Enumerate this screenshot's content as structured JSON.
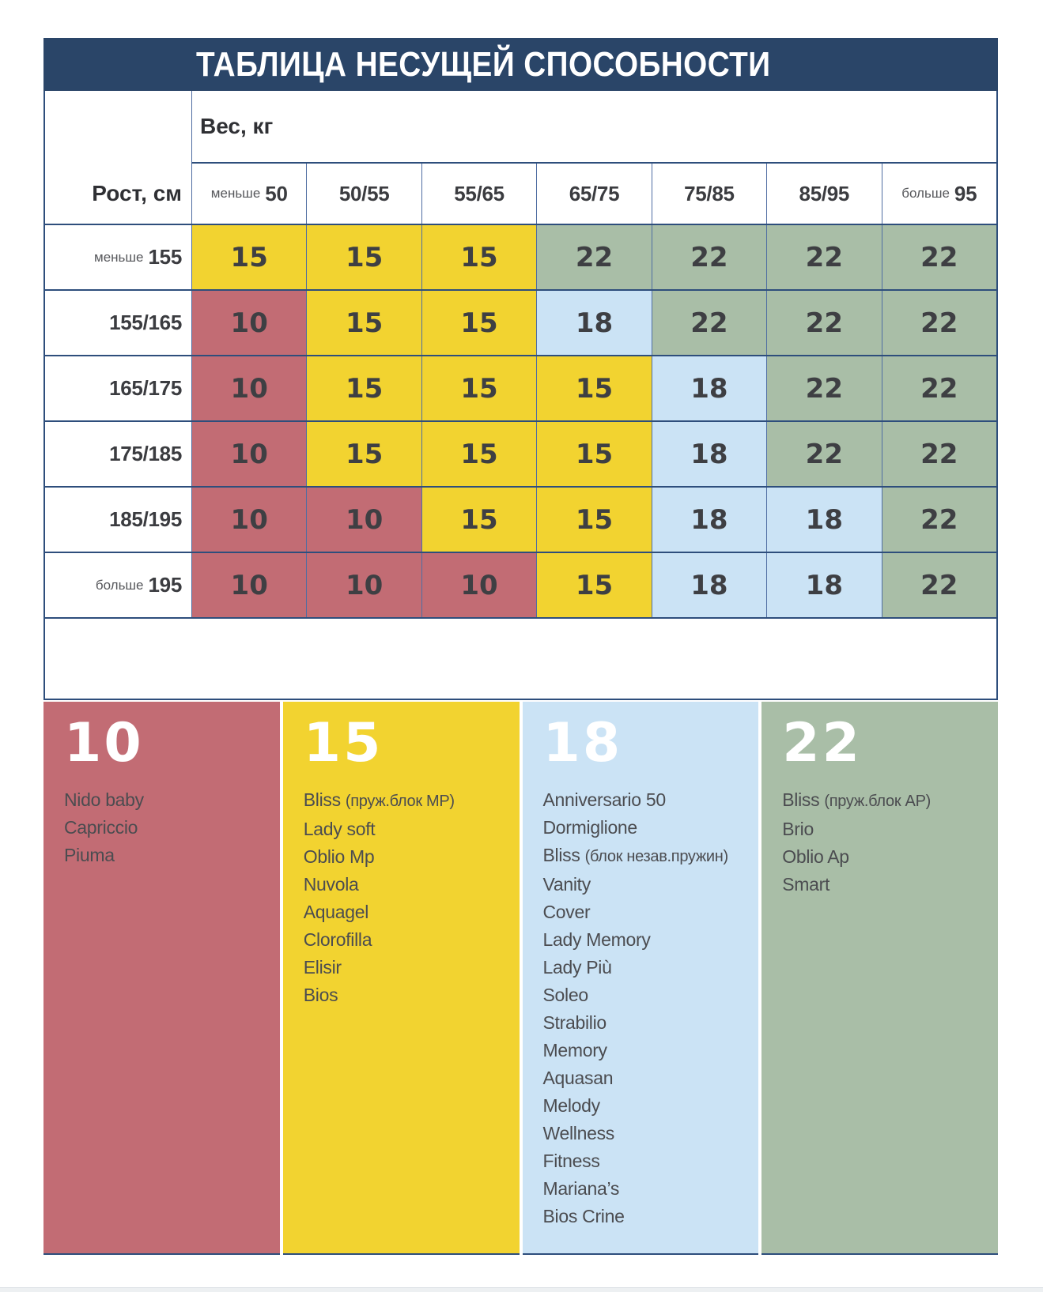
{
  "page": {
    "title": "ТАБЛИЦА НЕСУЩЕЙ СПОСОБНОСТИ"
  },
  "table": {
    "weight_axis_label": "Вес, кг",
    "height_axis_label": "Рост, см",
    "columns": [
      {
        "prefix": "меньше",
        "label": "50"
      },
      {
        "prefix": "",
        "label": "50/55"
      },
      {
        "prefix": "",
        "label": "55/65"
      },
      {
        "prefix": "",
        "label": "65/75"
      },
      {
        "prefix": "",
        "label": "75/85"
      },
      {
        "prefix": "",
        "label": "85/95"
      },
      {
        "prefix": "больше",
        "label": "95"
      }
    ],
    "rows": [
      {
        "prefix": "меньше",
        "label": "155",
        "values": [
          15,
          15,
          15,
          22,
          22,
          22,
          22
        ]
      },
      {
        "prefix": "",
        "label": "155/165",
        "values": [
          10,
          15,
          15,
          18,
          22,
          22,
          22
        ]
      },
      {
        "prefix": "",
        "label": "165/175",
        "values": [
          10,
          15,
          15,
          15,
          18,
          22,
          22
        ]
      },
      {
        "prefix": "",
        "label": "175/185",
        "values": [
          10,
          15,
          15,
          15,
          18,
          22,
          22
        ]
      },
      {
        "prefix": "",
        "label": "185/195",
        "values": [
          10,
          10,
          15,
          15,
          18,
          18,
          22
        ]
      },
      {
        "prefix": "больше",
        "label": "195",
        "values": [
          10,
          10,
          10,
          15,
          18,
          18,
          22
        ]
      }
    ],
    "value_colors": {
      "10": "#c26c74",
      "15": "#f2d330",
      "18": "#cbe3f5",
      "22": "#a9bea7"
    }
  },
  "legend": [
    {
      "value": "10",
      "color": "#c26c74",
      "items": [
        "Nido baby",
        "Capriccio",
        "Piuma"
      ]
    },
    {
      "value": "15",
      "color": "#f2d330",
      "items": [
        "Bliss (пруж.блок MP)",
        "Lady soft",
        "Oblio Mp",
        "Nuvola",
        "Aquagel",
        "Clorofilla",
        "Elisir",
        "Bios"
      ]
    },
    {
      "value": "18",
      "color": "#cbe3f5",
      "items": [
        "Anniversario 50",
        "Dormiglione",
        "Bliss (блок незав.пружин)",
        "Vanity",
        "Cover",
        "Lady Memory",
        "Lady Più",
        "Soleo",
        "Strabilio",
        "Memory",
        "Aquasan",
        "Melody",
        "Wellness",
        "Fitness",
        "Mariana’s",
        "Bios Crine"
      ]
    },
    {
      "value": "22",
      "color": "#a9bea7",
      "items": [
        "Bliss (пруж.блок AP)",
        "Brio",
        "Oblio Ap",
        "Smart"
      ]
    }
  ],
  "colors": {
    "navy": "#2a4568",
    "grid": "#2e4e7c",
    "grid_light": "#4f6da2",
    "footer_strip": "#edf0f2"
  },
  "chart_data": {
    "type": "heatmap",
    "title": "ТАБЛИЦА НЕСУЩЕЙ СПОСОБНОСТИ",
    "xlabel": "Вес, кг",
    "ylabel": "Рост, см",
    "x_categories": [
      "меньше 50",
      "50/55",
      "55/65",
      "65/75",
      "75/85",
      "85/95",
      "больше 95"
    ],
    "y_categories": [
      "меньше 155",
      "155/165",
      "165/175",
      "175/185",
      "185/195",
      "больше 195"
    ],
    "values": [
      [
        15,
        15,
        15,
        22,
        22,
        22,
        22
      ],
      [
        10,
        15,
        15,
        18,
        22,
        22,
        22
      ],
      [
        10,
        15,
        15,
        15,
        18,
        22,
        22
      ],
      [
        10,
        15,
        15,
        15,
        18,
        22,
        22
      ],
      [
        10,
        10,
        15,
        15,
        18,
        18,
        22
      ],
      [
        10,
        10,
        10,
        15,
        18,
        18,
        22
      ]
    ],
    "value_colors": {
      "10": "#c26c74",
      "15": "#f2d330",
      "18": "#cbe3f5",
      "22": "#a9bea7"
    },
    "legend_position": "bottom",
    "grid": true
  }
}
